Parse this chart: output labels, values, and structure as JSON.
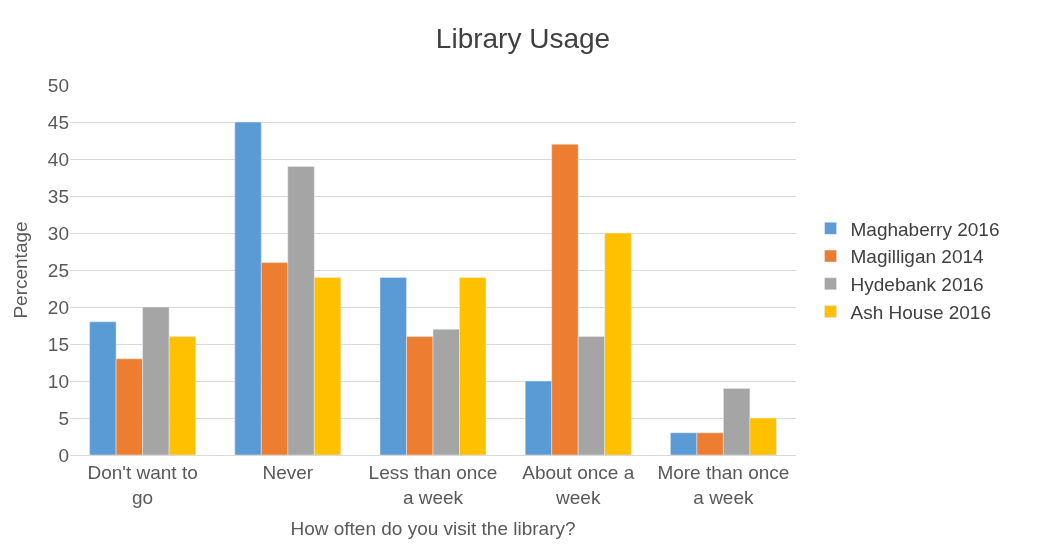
{
  "chart_data": {
    "type": "bar",
    "title": "Library Usage",
    "xlabel": "How often do you visit the library?",
    "ylabel": "Percentage",
    "categories": [
      "Don't want to go",
      "Never",
      "Less than once a week",
      "About once a week",
      "More than once a week"
    ],
    "series": [
      {
        "name": "Maghaberry 2016",
        "color": "#5b9bd5",
        "values": [
          18,
          45,
          24,
          10,
          3
        ]
      },
      {
        "name": "Magilligan 2014",
        "color": "#ed7d31",
        "values": [
          13,
          26,
          16,
          42,
          3
        ]
      },
      {
        "name": "Hydebank 2016",
        "color": "#a5a5a5",
        "values": [
          20,
          39,
          17,
          16,
          9
        ]
      },
      {
        "name": "Ash House 2016",
        "color": "#ffc000",
        "values": [
          16,
          24,
          24,
          30,
          5
        ]
      }
    ],
    "ylim": [
      0,
      50
    ],
    "yticks": [
      0,
      5,
      10,
      15,
      20,
      25,
      30,
      35,
      40,
      45,
      50
    ],
    "grid": "y",
    "legend": "right"
  }
}
